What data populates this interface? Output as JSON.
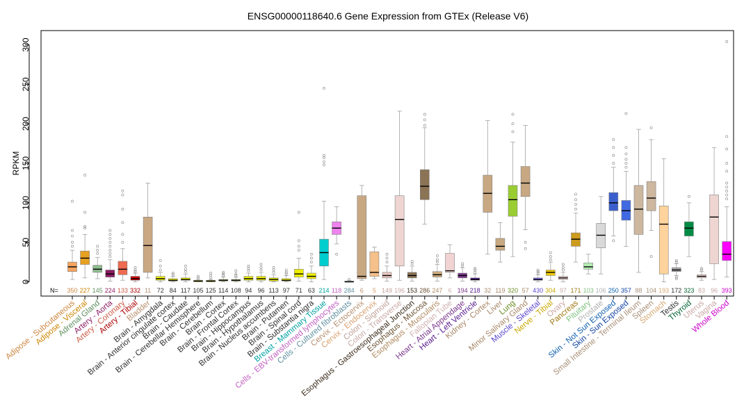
{
  "chart_data": {
    "type": "box",
    "title": "ENSG00000118640.6 Gene Expression from GTEx (Release V6)",
    "xlabel": "",
    "ylabel": "RPKM",
    "ylim": [
      -18,
      318
    ],
    "yticks": [
      0,
      50,
      100,
      150,
      200,
      250,
      300
    ],
    "n_label": "N=",
    "grid": false,
    "categories": [
      {
        "name": "Adipose - Subcutaneous",
        "n": "350",
        "color": "#f4a460",
        "label_color": "#cd853f",
        "q1": 13,
        "med": 19,
        "q3": 25,
        "wlo": 3,
        "whi": 40,
        "out": [
          45,
          50,
          58,
          65,
          102
        ]
      },
      {
        "name": "Adipose - Visceral",
        "n": "227",
        "color": "#e8a020",
        "label_color": "#cc8400",
        "q1": 22,
        "med": 30,
        "q3": 39,
        "wlo": 5,
        "whi": 60,
        "out": [
          68,
          70,
          88,
          135
        ]
      },
      {
        "name": "Adrenal Gland",
        "n": "145",
        "color": "#8fbc8f",
        "label_color": "#5f8f5f",
        "q1": 12,
        "med": 16,
        "q3": 21,
        "wlo": 4,
        "whi": 31,
        "out": [
          36,
          40,
          45
        ]
      },
      {
        "name": "Artery - Aorta",
        "n": "224",
        "color": "#8b1c62",
        "label_color": "#8b1c62",
        "q1": 6,
        "med": 10,
        "q3": 15,
        "wlo": 1,
        "whi": 28,
        "out": [
          32,
          36,
          40,
          45,
          50,
          55,
          60,
          65
        ]
      },
      {
        "name": "Artery - Coronary",
        "n": "133",
        "color": "#ee6a50",
        "label_color": "#cd5b45",
        "q1": 9,
        "med": 16,
        "q3": 26,
        "wlo": 2,
        "whi": 42,
        "out": [
          50,
          60,
          75,
          92,
          110,
          115
        ]
      },
      {
        "name": "Artery - Tibial",
        "n": "332",
        "color": "#cc0000",
        "label_color": "#aa0000",
        "q1": 2,
        "med": 4,
        "q3": 7,
        "wlo": 0,
        "whi": 11,
        "out": [
          13,
          15,
          18
        ]
      },
      {
        "name": "Bladder",
        "n": "11",
        "color": "#c8a882",
        "label_color": "#b89070",
        "q1": 12,
        "med": 46,
        "q3": 82,
        "wlo": 5,
        "whi": 125,
        "out": []
      },
      {
        "name": "Brain - Amygdala",
        "n": "72",
        "color": "#eeee00",
        "label_color": "#303030",
        "q1": 2,
        "med": 4,
        "q3": 7,
        "wlo": 0,
        "whi": 12,
        "out": [
          15,
          20,
          27
        ]
      },
      {
        "name": "Brain - Anterior cingulate cortex",
        "n": "84",
        "color": "#eeee00",
        "label_color": "#303030",
        "q1": 1,
        "med": 2,
        "q3": 4,
        "wlo": 0,
        "whi": 7,
        "out": [
          9,
          11
        ]
      },
      {
        "name": "Brain - Caudate",
        "n": "117",
        "color": "#eeee00",
        "label_color": "#303030",
        "q1": 2,
        "med": 3,
        "q3": 5,
        "wlo": 0,
        "whi": 10,
        "out": [
          13,
          16,
          20
        ]
      },
      {
        "name": "Brain - Cerebellar Hemisphere",
        "n": "105",
        "color": "#eeee00",
        "label_color": "#303030",
        "q1": 0,
        "med": 1,
        "q3": 2,
        "wlo": 0,
        "whi": 3,
        "out": [
          5,
          7
        ]
      },
      {
        "name": "Brain - Cerebellum",
        "n": "125",
        "color": "#eeee00",
        "label_color": "#303030",
        "q1": 0,
        "med": 1,
        "q3": 2,
        "wlo": 0,
        "whi": 3,
        "out": [
          5,
          8,
          11
        ]
      },
      {
        "name": "Brain - Cortex",
        "n": "114",
        "color": "#eeee00",
        "label_color": "#303030",
        "q1": 1,
        "med": 2,
        "q3": 3,
        "wlo": 0,
        "whi": 6,
        "out": [
          8,
          10,
          12
        ]
      },
      {
        "name": "Brain - Frontal Cortex",
        "n": "108",
        "color": "#eeee00",
        "label_color": "#303030",
        "q1": 1,
        "med": 2,
        "q3": 3,
        "wlo": 0,
        "whi": 6,
        "out": [
          8,
          10,
          14
        ]
      },
      {
        "name": "Brain - Hippocampus",
        "n": "94",
        "color": "#eeee00",
        "label_color": "#303030",
        "q1": 2,
        "med": 4,
        "q3": 7,
        "wlo": 0,
        "whi": 11,
        "out": [
          14,
          17,
          20
        ]
      },
      {
        "name": "Brain - Hypothalamus",
        "n": "96",
        "color": "#eeee00",
        "label_color": "#303030",
        "q1": 2,
        "med": 4,
        "q3": 7,
        "wlo": 0,
        "whi": 12,
        "out": [
          15,
          18,
          22
        ]
      },
      {
        "name": "Brain - Nucleus accumbens",
        "n": "113",
        "color": "#eeee00",
        "label_color": "#303030",
        "q1": 1,
        "med": 3,
        "q3": 5,
        "wlo": 0,
        "whi": 9,
        "out": [
          12,
          15,
          18
        ]
      },
      {
        "name": "Brain - Putamen",
        "n": "97",
        "color": "#eeee00",
        "label_color": "#303030",
        "q1": 1,
        "med": 2,
        "q3": 4,
        "wlo": 0,
        "whi": 8,
        "out": [
          10,
          12,
          15
        ]
      },
      {
        "name": "Brain - Spinal cord",
        "n": "71",
        "color": "#eeee00",
        "label_color": "#303030",
        "q1": 6,
        "med": 10,
        "q3": 16,
        "wlo": 1,
        "whi": 30,
        "out": [
          40,
          45,
          52,
          88
        ]
      },
      {
        "name": "Brain - Substantia nigra",
        "n": "63",
        "color": "#eeee00",
        "label_color": "#303030",
        "q1": 4,
        "med": 7,
        "q3": 11,
        "wlo": 0,
        "whi": 20,
        "out": [
          25,
          30,
          35
        ]
      },
      {
        "name": "Breast - Mammary Tissue",
        "n": "214",
        "color": "#00cdcd",
        "label_color": "#00a0a0",
        "q1": 20,
        "med": 37,
        "q3": 54,
        "wlo": 3,
        "whi": 102,
        "out": [
          148,
          152,
          157,
          160,
          245
        ]
      },
      {
        "name": "Cells - EBV-transformed lymphocytes",
        "n": "118",
        "color": "#ee82ee",
        "label_color": "#c060c0",
        "q1": 60,
        "med": 68,
        "q3": 76,
        "wlo": 48,
        "whi": 95,
        "out": [
          35
        ]
      },
      {
        "name": "Cells - Cultured fibroblasts",
        "n": "284",
        "color": "#9ac0cd",
        "label_color": "#6090a0",
        "q1": 0,
        "med": 0,
        "q3": 1,
        "wlo": 0,
        "whi": 2,
        "out": [
          3
        ]
      },
      {
        "name": "Cervix - Ectocervix",
        "n": "6",
        "color": "#c8a882",
        "label_color": "#b89070",
        "q1": 4,
        "med": 7,
        "q3": 109,
        "wlo": 2,
        "whi": 122,
        "out": []
      },
      {
        "name": "Cervix - Endocervix",
        "n": "5",
        "color": "#f5c08a",
        "label_color": "#d8a070",
        "q1": 7,
        "med": 12,
        "q3": 38,
        "wlo": 4,
        "whi": 44,
        "out": []
      },
      {
        "name": "Colon - Sigmoid",
        "n": "149",
        "color": "#e8c8c0",
        "label_color": "#c0a098",
        "q1": 5,
        "med": 8,
        "q3": 12,
        "wlo": 1,
        "whi": 20,
        "out": [
          25,
          30,
          35
        ]
      },
      {
        "name": "Colon - Transverse",
        "n": "196",
        "color": "#eed5d2",
        "label_color": "#c8a8a4",
        "q1": 20,
        "med": 79,
        "q3": 109,
        "wlo": 2,
        "whi": 216,
        "out": []
      },
      {
        "name": "Esophagus - Gastroesophageal Junction",
        "n": "153",
        "color": "#8b7355",
        "label_color": "#3a2a1a",
        "q1": 5,
        "med": 8,
        "q3": 12,
        "wlo": 1,
        "whi": 20,
        "out": [
          23,
          26
        ]
      },
      {
        "name": "Esophagus - Mucosa",
        "n": "286",
        "color": "#8b7355",
        "label_color": "#6b5335",
        "q1": 104,
        "med": 121,
        "q3": 142,
        "wlo": 73,
        "whi": 195,
        "out": [
          198,
          205,
          212
        ]
      },
      {
        "name": "Esophagus - Muscularis",
        "n": "247",
        "color": "#cdaa7d",
        "label_color": "#b08a60",
        "q1": 6,
        "med": 9,
        "q3": 13,
        "wlo": 1,
        "whi": 22,
        "out": [
          25,
          28,
          33
        ]
      },
      {
        "name": "Fallopian Tube",
        "n": "6",
        "color": "#f2d3d3",
        "label_color": "#d0b0b0",
        "q1": 12,
        "med": 14,
        "q3": 36,
        "wlo": 5,
        "whi": 47,
        "out": []
      },
      {
        "name": "Heart - Atrial Appendage",
        "n": "194",
        "color": "#7a378b",
        "label_color": "#7a378b",
        "q1": 5,
        "med": 8,
        "q3": 11,
        "wlo": 1,
        "whi": 18,
        "out": [
          20,
          23
        ]
      },
      {
        "name": "Heart - Left Ventricle",
        "n": "218",
        "color": "#551a8b",
        "label_color": "#551a8b",
        "q1": 2,
        "med": 3,
        "q3": 5,
        "wlo": 0,
        "whi": 10,
        "out": [
          12,
          15,
          17
        ]
      },
      {
        "name": "Kidney - Cortex",
        "n": "32",
        "color": "#c8a882",
        "label_color": "#a88868",
        "q1": 88,
        "med": 112,
        "q3": 135,
        "wlo": 35,
        "whi": 204,
        "out": []
      },
      {
        "name": "Liver",
        "n": "119",
        "color": "#c8a882",
        "label_color": "#a88868",
        "q1": 40,
        "med": 45,
        "q3": 55,
        "wlo": 25,
        "whi": 75,
        "out": []
      },
      {
        "name": "Lung",
        "n": "320",
        "color": "#9acd32",
        "label_color": "#6b8e23",
        "q1": 83,
        "med": 104,
        "q3": 122,
        "wlo": 32,
        "whi": 177,
        "out": [
          190,
          200,
          212
        ]
      },
      {
        "name": "Minor Salivary Gland",
        "n": "57",
        "color": "#c8a882",
        "label_color": "#a88868",
        "q1": 108,
        "med": 125,
        "q3": 146,
        "wlo": 66,
        "whi": 198,
        "out": [
          42,
          50
        ]
      },
      {
        "name": "Muscle - Skeletal",
        "n": "430",
        "color": "#7b68ee",
        "label_color": "#5b48ce",
        "q1": 2,
        "med": 3,
        "q3": 5,
        "wlo": 0,
        "whi": 9,
        "out": [
          11,
          13,
          15
        ]
      },
      {
        "name": "Nerve - Tibial",
        "n": "304",
        "color": "#eec900",
        "label_color": "#c8a800",
        "q1": 8,
        "med": 12,
        "q3": 15,
        "wlo": 2,
        "whi": 25,
        "out": [
          28,
          32,
          37
        ]
      },
      {
        "name": "Ovary",
        "n": "97",
        "color": "#eed5d2",
        "label_color": "#c8a8a4",
        "q1": 3,
        "med": 5,
        "q3": 7,
        "wlo": 0,
        "whi": 12,
        "out": [
          15,
          18,
          22
        ]
      },
      {
        "name": "Pancreas",
        "n": "171",
        "color": "#cd9b1d",
        "label_color": "#a07810",
        "q1": 45,
        "med": 54,
        "q3": 62,
        "wlo": 25,
        "whi": 87,
        "out": [
          92,
          98,
          104,
          111
        ]
      },
      {
        "name": "Pituitary",
        "n": "103",
        "color": "#b4eeb4",
        "label_color": "#80c080",
        "q1": 16,
        "med": 19,
        "q3": 24,
        "wlo": 10,
        "whi": 35,
        "out": []
      },
      {
        "name": "Prostate",
        "n": "106",
        "color": "#d9d9d9",
        "label_color": "#b0b0b0",
        "q1": 43,
        "med": 59,
        "q3": 74,
        "wlo": 10,
        "whi": 108,
        "out": []
      },
      {
        "name": "Skin - Not Sun Exposed",
        "n": "250",
        "color": "#3a5fcd",
        "label_color": "#1060b0",
        "q1": 90,
        "med": 100,
        "q3": 113,
        "wlo": 58,
        "whi": 145,
        "out": [
          150,
          160,
          170,
          180,
          52
        ]
      },
      {
        "name": "Skin - Sun Exposed",
        "n": "357",
        "color": "#4169e1",
        "label_color": "#1040a0",
        "q1": 78,
        "med": 90,
        "q3": 103,
        "wlo": 45,
        "whi": 140,
        "out": [
          145,
          150,
          155,
          162,
          170,
          213
        ]
      },
      {
        "name": "Small Intestine - Terminal Ileum",
        "n": "88",
        "color": "#cdb79e",
        "label_color": "#a89078",
        "q1": 60,
        "med": 92,
        "q3": 122,
        "wlo": 12,
        "whi": 193,
        "out": []
      },
      {
        "name": "Spleen",
        "n": "104",
        "color": "#cdb79e",
        "label_color": "#a89078",
        "q1": 90,
        "med": 106,
        "q3": 127,
        "wlo": 65,
        "whi": 180,
        "out": [
          195,
          32
        ]
      },
      {
        "name": "Stomach",
        "n": "193",
        "color": "#ffd39b",
        "label_color": "#d8a870",
        "q1": 10,
        "med": 73,
        "q3": 96,
        "wlo": 0,
        "whi": 156,
        "out": []
      },
      {
        "name": "Testis",
        "n": "172",
        "color": "#a6a6a6",
        "label_color": "#303030",
        "q1": 13,
        "med": 15,
        "q3": 18,
        "wlo": 8,
        "whi": 23,
        "out": [
          25,
          27,
          6,
          4
        ]
      },
      {
        "name": "Thyroid",
        "n": "323",
        "color": "#008b45",
        "label_color": "#006030",
        "q1": 58,
        "med": 68,
        "q3": 76,
        "wlo": 32,
        "whi": 100,
        "out": [
          108
        ]
      },
      {
        "name": "Uterus",
        "n": "83",
        "color": "#eed5d2",
        "label_color": "#c8a8a4",
        "q1": 5,
        "med": 7,
        "q3": 9,
        "wlo": 2,
        "whi": 13,
        "out": [
          15,
          17
        ]
      },
      {
        "name": "Vagina",
        "n": "96",
        "color": "#eed5d2",
        "label_color": "#c8a8a4",
        "q1": 23,
        "med": 82,
        "q3": 110,
        "wlo": 3,
        "whi": 170,
        "out": []
      },
      {
        "name": "Whole Blood",
        "n": "393",
        "color": "#ff00ff",
        "label_color": "#cc00cc",
        "q1": 27,
        "med": 35,
        "q3": 51,
        "wlo": 6,
        "whi": 95,
        "out": [
          105,
          110,
          115,
          120,
          125,
          140,
          150,
          168,
          184,
          304
        ]
      }
    ]
  }
}
